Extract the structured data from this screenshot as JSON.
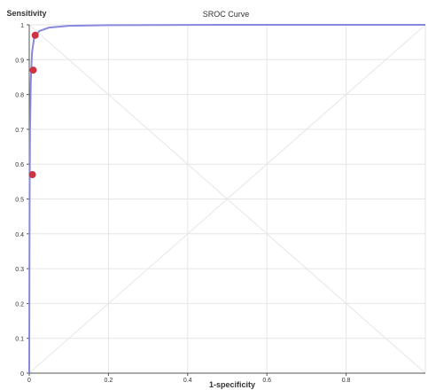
{
  "chart_data": {
    "type": "line",
    "title": "SROC Curve",
    "xlabel": "1-specificity",
    "ylabel": "Sensitivity",
    "xlim": [
      0,
      1
    ],
    "ylim": [
      0,
      1
    ],
    "x_ticks": [
      "0",
      "0.2",
      "0.4",
      "0.6",
      "0.8"
    ],
    "y_ticks": [
      "0",
      "0.1",
      "0.2",
      "0.3",
      "0.4",
      "0.5",
      "0.6",
      "0.7",
      "0.8",
      "0.9",
      "1"
    ],
    "grid": true,
    "colors": {
      "curve": "#8888dd",
      "points": "#cc3344",
      "grid": "#e6e6e6",
      "reference": "#e6e6e6",
      "axis": "#555555"
    },
    "series": [
      {
        "values": [
          {
            "x": 0.0,
            "y": 0.0
          },
          {
            "x": 0.0005,
            "y": 0.3
          },
          {
            "x": 0.001,
            "y": 0.52
          },
          {
            "x": 0.002,
            "y": 0.7
          },
          {
            "x": 0.004,
            "y": 0.84
          },
          {
            "x": 0.007,
            "y": 0.92
          },
          {
            "x": 0.012,
            "y": 0.96
          },
          {
            "x": 0.025,
            "y": 0.982
          },
          {
            "x": 0.05,
            "y": 0.992
          },
          {
            "x": 0.1,
            "y": 0.997
          },
          {
            "x": 0.2,
            "y": 0.999
          },
          {
            "x": 0.5,
            "y": 1.0
          },
          {
            "x": 1.0,
            "y": 1.0
          }
        ]
      }
    ],
    "points": [
      {
        "x": 0.015,
        "y": 0.97
      },
      {
        "x": 0.01,
        "y": 0.87
      },
      {
        "x": 0.008,
        "y": 0.57
      }
    ]
  }
}
